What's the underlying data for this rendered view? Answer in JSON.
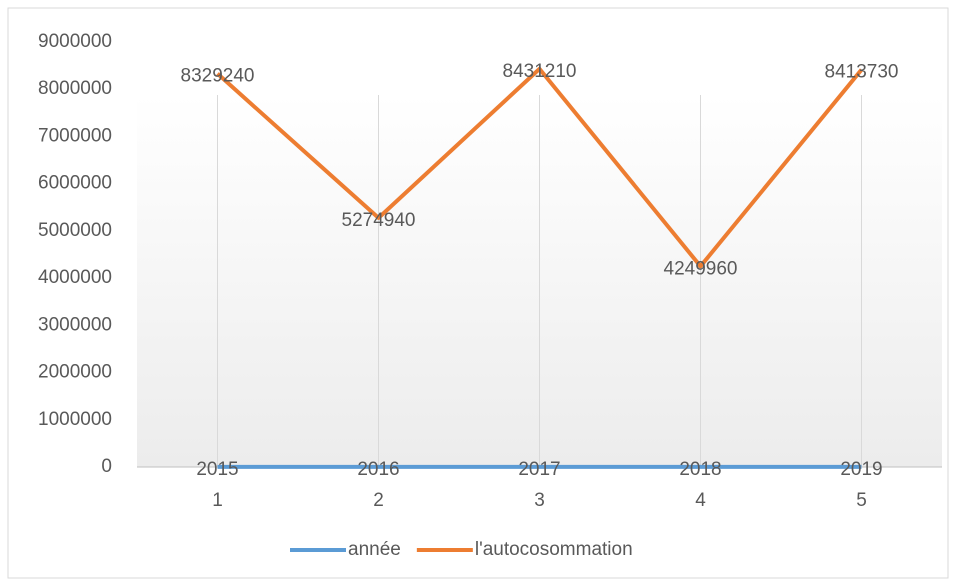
{
  "chart_data": {
    "type": "line",
    "categories": [
      "1",
      "2",
      "3",
      "4",
      "5"
    ],
    "series": [
      {
        "name": "année",
        "color": "#5b9bd5",
        "values": [
          2015,
          2016,
          2017,
          2018,
          2019
        ]
      },
      {
        "name": "l'autocosommation",
        "color": "#ed7d31",
        "values": [
          8329240,
          5274940,
          8431210,
          4249960,
          8413730
        ]
      }
    ],
    "ylim": [
      0,
      9000000
    ],
    "yticks": [
      0,
      1000000,
      2000000,
      3000000,
      4000000,
      5000000,
      6000000,
      7000000,
      8000000,
      9000000
    ],
    "grid": true,
    "legend": "bottom"
  }
}
